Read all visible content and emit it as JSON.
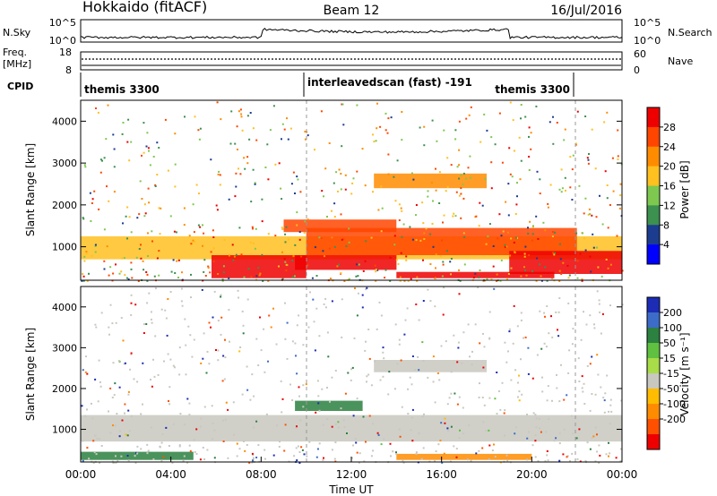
{
  "header": {
    "station": "Hokkaido (fitACF)",
    "beam": "Beam 12",
    "date": "16/Jul/2016"
  },
  "noise_panel": {
    "left_label": "N.Sky",
    "left_ticks": [
      "10^5",
      "10^0"
    ],
    "right_ticks": [
      "10^5",
      "10^0"
    ],
    "right_label": "N.Search"
  },
  "freq_panel": {
    "left_label": "Freq.",
    "left_unit": "[MHz]",
    "left_ticks": [
      "18",
      "8"
    ],
    "right_ticks": [
      "60",
      "0"
    ],
    "right_label": "Nave"
  },
  "cpid_panel": {
    "label": "CPID",
    "modes": [
      {
        "name": "themis 3300",
        "start_h": 0,
        "end_h": 10
      },
      {
        "name": "interleavedscan (fast) -191",
        "start_h": 10,
        "end_h": 22
      },
      {
        "name": "themis 3300",
        "start_h": 22,
        "end_h": 24
      }
    ],
    "display_labels": [
      "themis 3300",
      "interleavedscan (fast) -191",
      "themis 3300"
    ]
  },
  "axes": {
    "ylabel": "Slant Range [km]",
    "y_ticks": [
      "1000",
      "2000",
      "3000",
      "4000"
    ],
    "x_ticks": [
      "00:00",
      "04:00",
      "08:00",
      "12:00",
      "16:00",
      "20:00",
      "00:00"
    ],
    "xlabel": "Time UT"
  },
  "power_colorbar": {
    "label": "Power [dB]",
    "ticks": [
      "28",
      "24",
      "20",
      "16",
      "12",
      "8",
      "4"
    ],
    "colors": [
      "#ee0000",
      "#ff4500",
      "#ff8c00",
      "#ffc020",
      "#7ec850",
      "#3c9050",
      "#1c3c90",
      "#0000ff"
    ]
  },
  "velocity_colorbar": {
    "label": "Velocity [m s⁻¹]",
    "ticks": [
      "200",
      "100",
      "50",
      "15",
      "-15",
      "-50",
      "-100",
      "-200"
    ],
    "colors": [
      "#1c2cb4",
      "#3c6cc8",
      "#2c8040",
      "#60c040",
      "#a8dc48",
      "#c8c8c0",
      "#ffbc00",
      "#ff8c00",
      "#ff5000",
      "#ee0000"
    ]
  },
  "chart_data": {
    "type": "heatmap",
    "x_range_hours": [
      0,
      24
    ],
    "y_range_km": [
      200,
      4500
    ],
    "panels": [
      {
        "name": "Power",
        "regions": [
          {
            "t": [
              0,
              24
            ],
            "r": [
              700,
              1250
            ],
            "level": 14
          },
          {
            "t": [
              5.8,
              10
            ],
            "r": [
              250,
              800
            ],
            "level": 28
          },
          {
            "t": [
              9.5,
              14
            ],
            "r": [
              450,
              800
            ],
            "level": 26
          },
          {
            "t": [
              9,
              14
            ],
            "r": [
              1350,
              1650
            ],
            "level": 22
          },
          {
            "t": [
              10,
              22
            ],
            "r": [
              800,
              1450
            ],
            "level": 22
          },
          {
            "t": [
              14,
              21
            ],
            "r": [
              250,
              400
            ],
            "level": 28
          },
          {
            "t": [
              19,
              24
            ],
            "r": [
              350,
              900
            ],
            "level": 28
          },
          {
            "t": [
              13,
              18
            ],
            "r": [
              2400,
              2750
            ],
            "level": 18
          }
        ]
      },
      {
        "name": "Velocity",
        "regions": [
          {
            "t": [
              0,
              24
            ],
            "r": [
              700,
              1350
            ],
            "value": 0
          },
          {
            "t": [
              0,
              5
            ],
            "r": [
              250,
              450
            ],
            "value": 40
          },
          {
            "t": [
              9.5,
              12.5
            ],
            "r": [
              1450,
              1700
            ],
            "value": 40
          },
          {
            "t": [
              14,
              20
            ],
            "r": [
              250,
              400
            ],
            "value": -30
          },
          {
            "t": [
              13,
              18
            ],
            "r": [
              2400,
              2700
            ],
            "value": 0
          }
        ]
      }
    ],
    "grid": false
  }
}
